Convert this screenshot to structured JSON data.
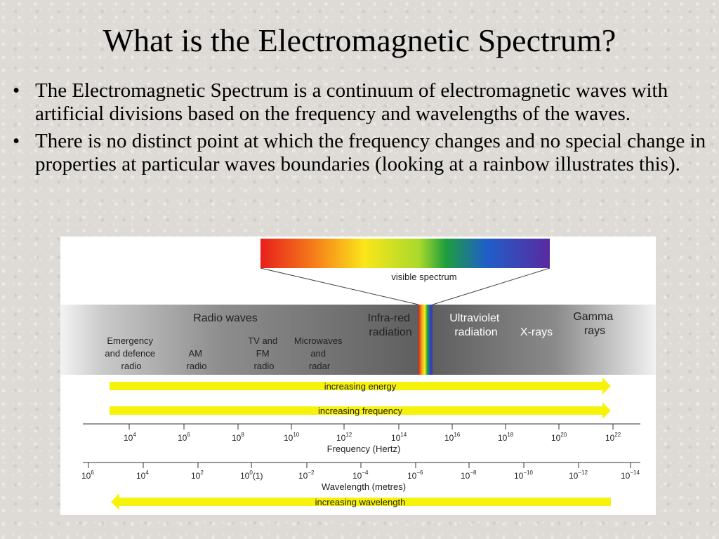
{
  "slide": {
    "title": "What is the Electromagnetic Spectrum?",
    "bullets": [
      "The Electromagnetic Spectrum is a continuum of electromagnetic waves with artificial divisions based on the frequency and wavelengths of the waves.",
      "There is no distinct point at which the frequency changes and no special change in properties at particular waves boundaries (looking at a rainbow illustrates this)."
    ],
    "bullet_glyph": "•"
  },
  "diagram": {
    "visible_label": "visible spectrum",
    "bands": {
      "radio": "Radio waves",
      "infrared": [
        "Infra-red",
        "radiation"
      ],
      "ultraviolet": [
        "Ultraviolet",
        "radiation"
      ],
      "xrays": "X-rays",
      "gamma": [
        "Gamma",
        "rays"
      ]
    },
    "sub_bands": {
      "emergency": [
        "Emergency",
        "and defence",
        "radio"
      ],
      "am": [
        "AM",
        "radio"
      ],
      "tvfm": [
        "TV and",
        "FM",
        "radio"
      ],
      "microwaves": [
        "Microwaves",
        "and",
        "radar"
      ]
    },
    "arrows": {
      "energy": "increasing energy",
      "frequency": "increasing frequency",
      "wavelength": "increasing wavelength"
    },
    "frequency_axis": {
      "label": "Frequency (Hertz)",
      "ticks": [
        {
          "base": "10",
          "exp": "4"
        },
        {
          "base": "10",
          "exp": "6"
        },
        {
          "base": "10",
          "exp": "8"
        },
        {
          "base": "10",
          "exp": "10"
        },
        {
          "base": "10",
          "exp": "12"
        },
        {
          "base": "10",
          "exp": "14"
        },
        {
          "base": "10",
          "exp": "16"
        },
        {
          "base": "10",
          "exp": "18"
        },
        {
          "base": "10",
          "exp": "20"
        },
        {
          "base": "10",
          "exp": "22"
        }
      ]
    },
    "wavelength_axis": {
      "label": "Wavelength (metres)",
      "ticks": [
        {
          "base": "10",
          "exp": "6",
          "suffix": ""
        },
        {
          "base": "10",
          "exp": "4",
          "suffix": ""
        },
        {
          "base": "10",
          "exp": "2",
          "suffix": ""
        },
        {
          "base": "10",
          "exp": "0",
          "suffix": "(1)"
        },
        {
          "base": "10",
          "exp": "−2",
          "suffix": ""
        },
        {
          "base": "10",
          "exp": "−4",
          "suffix": ""
        },
        {
          "base": "10",
          "exp": "−6",
          "suffix": ""
        },
        {
          "base": "10",
          "exp": "−8",
          "suffix": ""
        },
        {
          "base": "10",
          "exp": "−10",
          "suffix": ""
        },
        {
          "base": "10",
          "exp": "−12",
          "suffix": ""
        },
        {
          "base": "10",
          "exp": "−14",
          "suffix": ""
        }
      ]
    },
    "colors": {
      "arrow_yellow": "#f7f20a",
      "band_dark": "#5f5f5f",
      "band_light": "#f2f2f2"
    }
  }
}
